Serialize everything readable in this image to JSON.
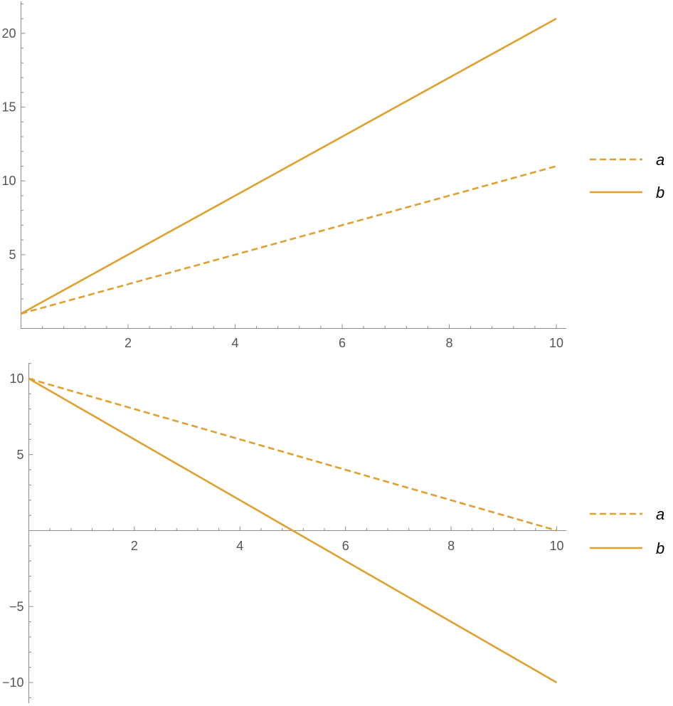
{
  "chart_data": [
    {
      "type": "line",
      "title": "",
      "xlabel": "",
      "ylabel": "",
      "xlim": [
        0,
        10
      ],
      "ylim": [
        0,
        22
      ],
      "x_ticks": [
        2,
        4,
        6,
        8,
        10
      ],
      "y_ticks": [
        5,
        10,
        15,
        20
      ],
      "grid": false,
      "legend_position": "right",
      "series": [
        {
          "name": "a",
          "style": "dashed",
          "color": "#e0a030",
          "x": [
            0,
            10
          ],
          "y": [
            1,
            11
          ]
        },
        {
          "name": "b",
          "style": "solid",
          "color": "#e0a030",
          "x": [
            0,
            10
          ],
          "y": [
            1,
            21
          ]
        }
      ]
    },
    {
      "type": "line",
      "title": "",
      "xlabel": "",
      "ylabel": "",
      "xlim": [
        0,
        10
      ],
      "ylim": [
        -11,
        11
      ],
      "x_ticks": [
        2,
        4,
        6,
        8,
        10
      ],
      "y_ticks": [
        -10,
        -5,
        5,
        10
      ],
      "grid": false,
      "legend_position": "right",
      "series": [
        {
          "name": "a",
          "style": "dashed",
          "color": "#e0a030",
          "x": [
            0,
            10
          ],
          "y": [
            10,
            0
          ]
        },
        {
          "name": "b",
          "style": "solid",
          "color": "#e0a030",
          "x": [
            0,
            10
          ],
          "y": [
            10,
            -10
          ]
        }
      ]
    }
  ]
}
